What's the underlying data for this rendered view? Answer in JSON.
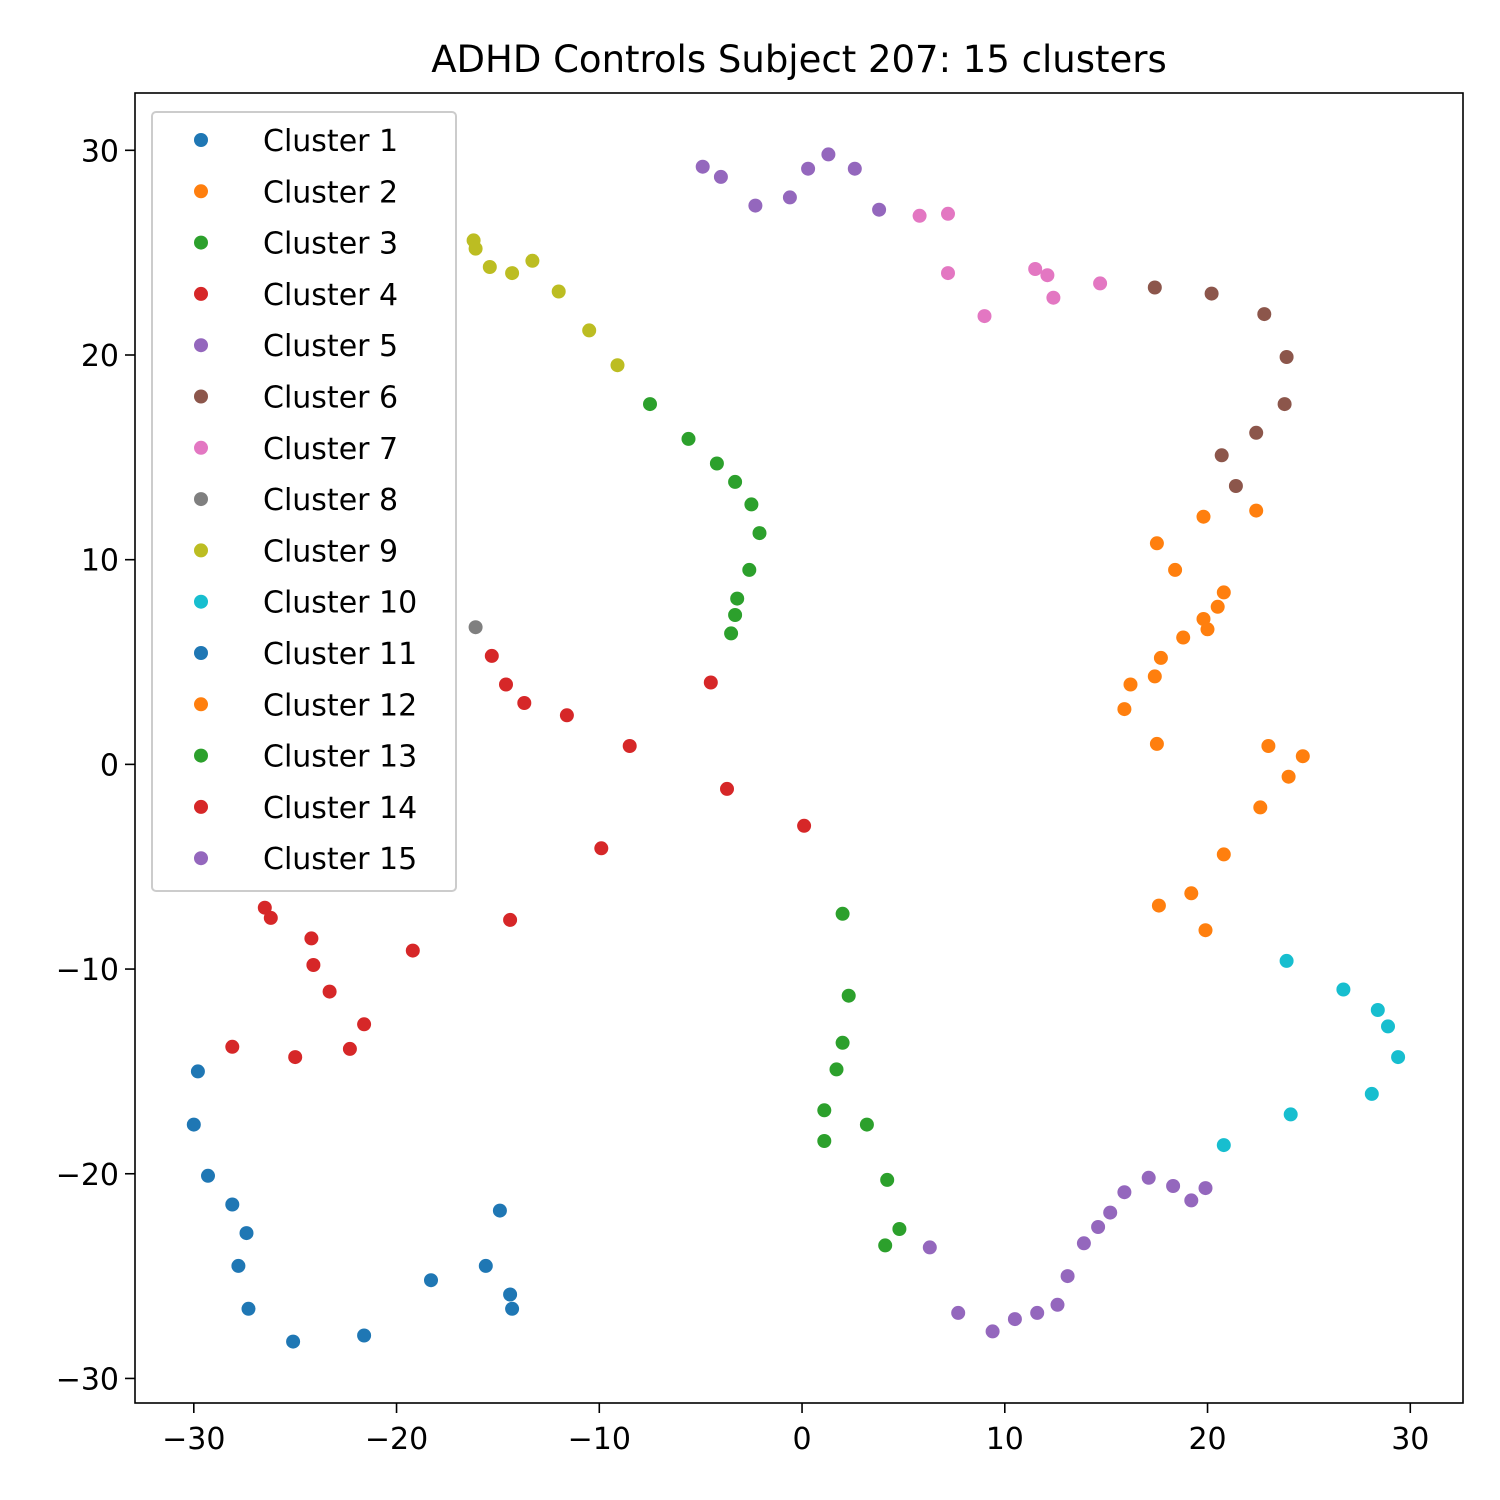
{
  "chart_data": {
    "type": "scatter",
    "title": "ADHD Controls Subject 207: 15 clusters",
    "xlabel": "",
    "ylabel": "",
    "xlim": [
      -32.9,
      32.6
    ],
    "ylim": [
      -31.2,
      32.8
    ],
    "x_ticks": [
      -30,
      -20,
      -10,
      0,
      10,
      20,
      30
    ],
    "y_ticks": [
      -30,
      -20,
      -10,
      0,
      10,
      20,
      30
    ],
    "x_tick_labels": [
      "−30",
      "−20",
      "−10",
      "0",
      "10",
      "20",
      "30"
    ],
    "y_tick_labels": [
      "−30",
      "−20",
      "−10",
      "0",
      "10",
      "20",
      "30"
    ],
    "grid": false,
    "legend_position": "upper-left",
    "series": [
      {
        "name": "Cluster 1",
        "color": "#1f77b4",
        "points": []
      },
      {
        "name": "Cluster 2",
        "color": "#ff7f0e",
        "points": [
          [
            17.5,
            10.8
          ],
          [
            19.8,
            12.1
          ],
          [
            22.4,
            12.4
          ],
          [
            18.4,
            9.5
          ],
          [
            20.8,
            8.4
          ],
          [
            20.5,
            7.7
          ],
          [
            19.8,
            7.1
          ],
          [
            20.0,
            6.6
          ],
          [
            18.8,
            6.2
          ],
          [
            17.7,
            5.2
          ],
          [
            17.4,
            4.3
          ],
          [
            16.2,
            3.9
          ],
          [
            15.9,
            2.7
          ]
        ]
      },
      {
        "name": "Cluster 3",
        "color": "#2ca02c",
        "points": [
          [
            -7.5,
            17.6
          ],
          [
            -5.6,
            15.9
          ],
          [
            -4.2,
            14.7
          ],
          [
            -3.3,
            13.8
          ],
          [
            -2.5,
            12.7
          ],
          [
            -2.1,
            11.3
          ],
          [
            -2.6,
            9.5
          ],
          [
            -3.2,
            8.1
          ],
          [
            -3.3,
            7.3
          ],
          [
            -3.5,
            6.4
          ]
        ]
      },
      {
        "name": "Cluster 4",
        "color": "#d62728",
        "points": [
          [
            -15.3,
            5.3
          ],
          [
            -14.6,
            3.9
          ],
          [
            -13.7,
            3.0
          ],
          [
            -11.6,
            2.4
          ],
          [
            -8.5,
            0.9
          ],
          [
            -4.5,
            4.0
          ],
          [
            -3.7,
            -1.2
          ],
          [
            0.1,
            -3.0
          ],
          [
            -9.9,
            -4.1
          ],
          [
            -14.4,
            -7.6
          ]
        ]
      },
      {
        "name": "Cluster 5",
        "color": "#9467bd",
        "points": [
          [
            -4.9,
            29.2
          ],
          [
            -4.0,
            28.7
          ],
          [
            -2.3,
            27.3
          ],
          [
            -0.6,
            27.7
          ],
          [
            0.3,
            29.1
          ],
          [
            1.3,
            29.8
          ],
          [
            2.6,
            29.1
          ],
          [
            3.8,
            27.1
          ]
        ]
      },
      {
        "name": "Cluster 6",
        "color": "#8c564b",
        "points": [
          [
            17.4,
            23.3
          ],
          [
            20.2,
            23.0
          ],
          [
            22.8,
            22.0
          ],
          [
            23.9,
            19.9
          ],
          [
            23.8,
            17.6
          ],
          [
            22.4,
            16.2
          ],
          [
            20.7,
            15.1
          ],
          [
            21.4,
            13.6
          ]
        ]
      },
      {
        "name": "Cluster 7",
        "color": "#e377c2",
        "points": [
          [
            5.8,
            26.8
          ],
          [
            7.2,
            26.9
          ],
          [
            7.2,
            24.0
          ],
          [
            9.0,
            21.9
          ],
          [
            11.5,
            24.2
          ],
          [
            12.1,
            23.9
          ],
          [
            12.4,
            22.8
          ],
          [
            14.7,
            23.5
          ]
        ]
      },
      {
        "name": "Cluster 8",
        "color": "#7f7f7f",
        "points": [
          [
            -16.1,
            6.7
          ]
        ]
      },
      {
        "name": "Cluster 9",
        "color": "#bcbd22",
        "points": [
          [
            -16.2,
            25.6
          ],
          [
            -16.1,
            25.2
          ],
          [
            -15.4,
            24.3
          ],
          [
            -14.3,
            24.0
          ],
          [
            -13.3,
            24.6
          ],
          [
            -12.0,
            23.1
          ],
          [
            -10.5,
            21.2
          ],
          [
            -9.1,
            19.5
          ]
        ]
      },
      {
        "name": "Cluster 10",
        "color": "#17becf",
        "points": [
          [
            23.9,
            -9.6
          ],
          [
            26.7,
            -11.0
          ],
          [
            28.4,
            -12.0
          ],
          [
            28.9,
            -12.8
          ],
          [
            29.4,
            -14.3
          ],
          [
            28.1,
            -16.1
          ],
          [
            24.1,
            -17.1
          ],
          [
            20.8,
            -18.6
          ]
        ]
      },
      {
        "name": "Cluster 11",
        "color": "#1f77b4",
        "points": [
          [
            -29.8,
            -15.0
          ],
          [
            -30.0,
            -17.6
          ],
          [
            -29.3,
            -20.1
          ],
          [
            -28.1,
            -21.5
          ],
          [
            -27.4,
            -22.9
          ],
          [
            -27.8,
            -24.5
          ],
          [
            -27.3,
            -26.6
          ],
          [
            -25.1,
            -28.2
          ],
          [
            -21.6,
            -27.9
          ],
          [
            -18.3,
            -25.2
          ],
          [
            -15.6,
            -24.5
          ],
          [
            -14.9,
            -21.8
          ],
          [
            -14.4,
            -25.9
          ],
          [
            -14.3,
            -26.6
          ]
        ]
      },
      {
        "name": "Cluster 12",
        "color": "#ff7f0e",
        "points": [
          [
            17.5,
            1.0
          ],
          [
            23.0,
            0.9
          ],
          [
            24.7,
            0.4
          ],
          [
            24.0,
            -0.6
          ],
          [
            22.6,
            -2.1
          ],
          [
            20.8,
            -4.4
          ],
          [
            19.2,
            -6.3
          ],
          [
            17.6,
            -6.9
          ],
          [
            19.9,
            -8.1
          ]
        ]
      },
      {
        "name": "Cluster 13",
        "color": "#2ca02c",
        "points": [
          [
            2.0,
            -7.3
          ],
          [
            2.3,
            -11.3
          ],
          [
            2.0,
            -13.6
          ],
          [
            1.7,
            -14.9
          ],
          [
            1.1,
            -16.9
          ],
          [
            3.2,
            -17.6
          ],
          [
            1.1,
            -18.4
          ],
          [
            4.2,
            -20.3
          ],
          [
            4.8,
            -22.7
          ],
          [
            4.1,
            -23.5
          ]
        ]
      },
      {
        "name": "Cluster 14",
        "color": "#d62728",
        "points": [
          [
            -26.5,
            -7.0
          ],
          [
            -26.2,
            -7.5
          ],
          [
            -24.2,
            -8.5
          ],
          [
            -24.1,
            -9.8
          ],
          [
            -23.3,
            -11.1
          ],
          [
            -19.2,
            -9.1
          ],
          [
            -21.6,
            -12.7
          ],
          [
            -22.3,
            -13.9
          ],
          [
            -28.1,
            -13.8
          ],
          [
            -25.0,
            -14.3
          ]
        ]
      },
      {
        "name": "Cluster 15",
        "color": "#9467bd",
        "points": [
          [
            6.3,
            -23.6
          ],
          [
            7.7,
            -26.8
          ],
          [
            9.4,
            -27.7
          ],
          [
            10.5,
            -27.1
          ],
          [
            11.6,
            -26.8
          ],
          [
            12.6,
            -26.4
          ],
          [
            13.1,
            -25.0
          ],
          [
            13.9,
            -23.4
          ],
          [
            14.6,
            -22.6
          ],
          [
            15.2,
            -21.9
          ],
          [
            15.9,
            -20.9
          ],
          [
            17.1,
            -20.2
          ],
          [
            18.3,
            -20.6
          ],
          [
            19.2,
            -21.3
          ],
          [
            19.9,
            -20.7
          ]
        ]
      }
    ]
  }
}
